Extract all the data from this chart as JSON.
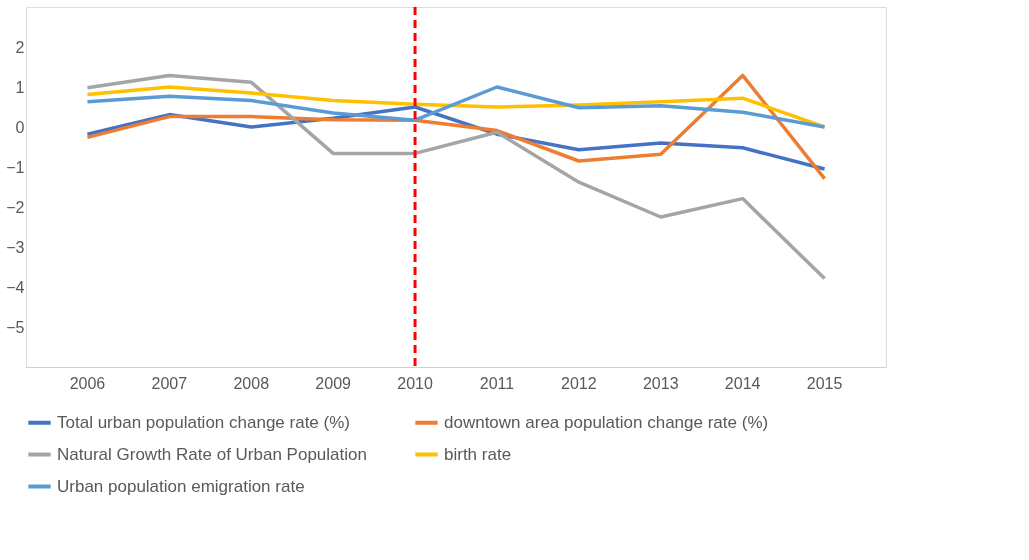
{
  "chart_data": {
    "type": "line",
    "categories": [
      "2006",
      "2007",
      "2008",
      "2009",
      "2010",
      "2011",
      "2012",
      "2013",
      "2014",
      "2015"
    ],
    "series": [
      {
        "name": "Total urban population change rate (%)",
        "color": "#4472c4",
        "values": [
          -0.18,
          0.31,
          0,
          0.22,
          0.5,
          -0.18,
          -0.57,
          -0.4,
          -0.52,
          -1.05
        ]
      },
      {
        "name": "downtown area population change rate (%)",
        "color": "#ed7d31",
        "values": [
          -0.26,
          0.26,
          0.26,
          0.18,
          0.17,
          -0.09,
          -0.85,
          -0.68,
          1.29,
          -1.29
        ]
      },
      {
        "name": "Natural Growth Rate of Urban Population",
        "color": "#a5a5a5",
        "values": [
          0.98,
          1.29,
          1.12,
          -0.66,
          -0.66,
          -0.13,
          -1.38,
          -2.25,
          -1.79,
          -3.79
        ]
      },
      {
        "name": "birth rate",
        "color": "#ffc000",
        "values": [
          0.81,
          1.0,
          0.85,
          0.66,
          0.57,
          0.5,
          0.55,
          0.63,
          0.72,
          0
        ]
      },
      {
        "name": "Urban population emigration rate",
        "color": "#5b9bd5",
        "values": [
          0.63,
          0.77,
          0.66,
          0.35,
          0.17,
          1.0,
          0.48,
          0.53,
          0.37,
          0
        ]
      }
    ],
    "ylim": [
      -6,
      3
    ],
    "yticks": [
      -5,
      -4,
      -3,
      -2,
      -1,
      0,
      1,
      2
    ],
    "grid": false,
    "legend": "bottom",
    "line_style": "solid",
    "marker": "none",
    "ref_lines": [
      {
        "axis": "x",
        "value": "2010",
        "color": "#ff0000",
        "line_style": "dashed"
      }
    ]
  }
}
